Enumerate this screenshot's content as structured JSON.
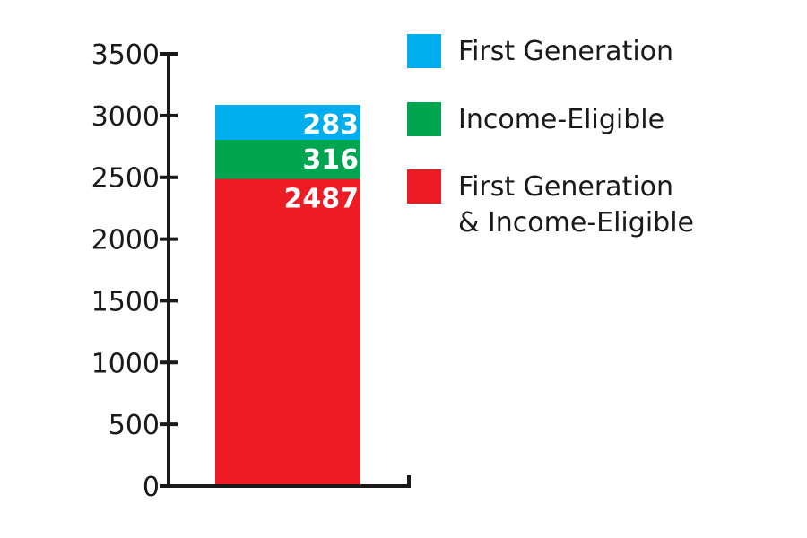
{
  "chart_data": {
    "type": "bar",
    "stacked": true,
    "categories": [
      ""
    ],
    "series": [
      {
        "name": "First Generation & Income-Eligible",
        "values": [
          2487
        ],
        "color": "#ed1c24"
      },
      {
        "name": "Income-Eligible",
        "values": [
          316
        ],
        "color": "#00a550"
      },
      {
        "name": "First Generation",
        "values": [
          283
        ],
        "color": "#00aeef"
      }
    ],
    "data_labels": [
      "2487",
      "316",
      "283"
    ],
    "ylim": [
      0,
      3500
    ],
    "yticks": [
      0,
      500,
      1000,
      1500,
      2000,
      2500,
      3000,
      3500
    ],
    "ytick_labels": [
      "0",
      "500",
      "1000",
      "1500",
      "2000",
      "2500",
      "3000",
      "3500"
    ],
    "grid": false,
    "legend": {
      "position": "right",
      "entries": [
        {
          "lines": [
            "First Generation"
          ],
          "color": "#00aeef"
        },
        {
          "lines": [
            "Income-Eligible"
          ],
          "color": "#00a550"
        },
        {
          "lines": [
            "First Generation",
            "& Income-Eligible"
          ],
          "color": "#ed1c24"
        }
      ]
    }
  }
}
